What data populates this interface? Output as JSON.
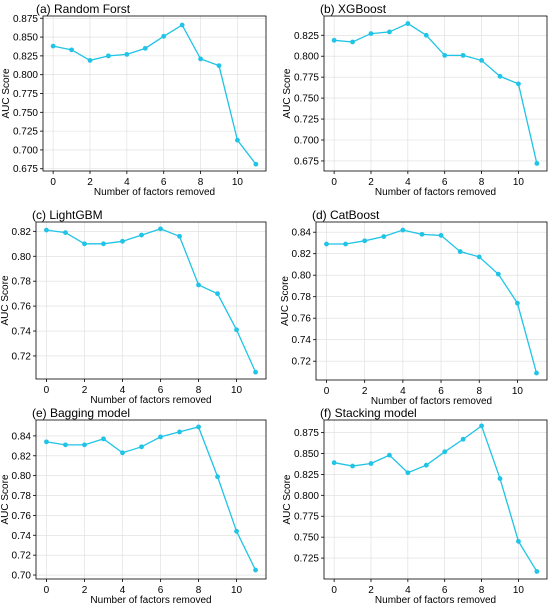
{
  "style": {
    "line_color": "#1fc4e6",
    "marker_color": "#1fc4e6",
    "grid_color": "#dcdcdc",
    "grid": true
  },
  "chart_data": [
    {
      "type": "line",
      "title": "(a) Random Forst",
      "xlabel": "Number of factors removed",
      "ylabel": "AUC Score",
      "x": [
        0,
        1,
        2,
        3,
        4,
        5,
        6,
        7,
        8,
        9,
        10,
        11
      ],
      "values": [
        0.838,
        0.833,
        0.819,
        0.825,
        0.827,
        0.835,
        0.851,
        0.866,
        0.821,
        0.812,
        0.713,
        0.681
      ],
      "xlim": [
        -0.55,
        11.55
      ],
      "ylim": [
        0.672,
        0.878
      ],
      "xticks": [
        0,
        2,
        4,
        6,
        8,
        10
      ],
      "yticks": [
        0.675,
        0.7,
        0.725,
        0.75,
        0.775,
        0.8,
        0.825,
        0.85,
        0.875
      ],
      "ytick_labels": [
        "0.675",
        "0.700",
        "0.725",
        "0.750",
        "0.775",
        "0.800",
        "0.825",
        "0.850",
        "0.875"
      ]
    },
    {
      "type": "line",
      "title": "(b) XGBoost",
      "xlabel": "Number of factors removed",
      "ylabel": "AUC Score",
      "x": [
        0,
        1,
        2,
        3,
        4,
        5,
        6,
        7,
        8,
        9,
        10,
        11
      ],
      "values": [
        0.819,
        0.817,
        0.827,
        0.829,
        0.839,
        0.825,
        0.801,
        0.801,
        0.795,
        0.776,
        0.767,
        0.672
      ],
      "xlim": [
        -0.55,
        11.55
      ],
      "ylim": [
        0.663,
        0.848
      ],
      "xticks": [
        0,
        2,
        4,
        6,
        8,
        10
      ],
      "yticks": [
        0.675,
        0.7,
        0.725,
        0.75,
        0.775,
        0.8,
        0.825
      ],
      "ytick_labels": [
        "0.675",
        "0.700",
        "0.725",
        "0.750",
        "0.775",
        "0.800",
        "0.825"
      ]
    },
    {
      "type": "line",
      "title": "(c) LightGBM",
      "xlabel": "Number of factors removed",
      "ylabel": "AUC Score",
      "x": [
        0,
        1,
        2,
        3,
        4,
        5,
        6,
        7,
        8,
        9,
        10,
        11
      ],
      "values": [
        0.821,
        0.819,
        0.81,
        0.81,
        0.812,
        0.817,
        0.822,
        0.816,
        0.777,
        0.77,
        0.741,
        0.707
      ],
      "xlim": [
        -0.55,
        11.55
      ],
      "ylim": [
        0.7015,
        0.8275
      ],
      "xticks": [
        0,
        2,
        4,
        6,
        8,
        10
      ],
      "yticks": [
        0.72,
        0.74,
        0.76,
        0.78,
        0.8,
        0.82
      ],
      "ytick_labels": [
        "0.72",
        "0.74",
        "0.76",
        "0.78",
        "0.80",
        "0.82"
      ]
    },
    {
      "type": "line",
      "title": "(d) CatBoost",
      "xlabel": "Number of factors removed",
      "ylabel": "AUC Score",
      "x": [
        0,
        1,
        2,
        3,
        4,
        5,
        6,
        7,
        8,
        9,
        10,
        11
      ],
      "values": [
        0.829,
        0.829,
        0.832,
        0.836,
        0.842,
        0.838,
        0.837,
        0.822,
        0.817,
        0.801,
        0.774,
        0.709
      ],
      "xlim": [
        -0.55,
        11.55
      ],
      "ylim": [
        0.7025,
        0.8495
      ],
      "xticks": [
        0,
        2,
        4,
        6,
        8,
        10
      ],
      "yticks": [
        0.72,
        0.74,
        0.76,
        0.78,
        0.8,
        0.82,
        0.84
      ],
      "ytick_labels": [
        "0.72",
        "0.74",
        "0.76",
        "0.78",
        "0.80",
        "0.82",
        "0.84"
      ]
    },
    {
      "type": "line",
      "title": "(e) Bagging model",
      "xlabel": "Number of factors removed",
      "ylabel": "AUC Score",
      "x": [
        0,
        1,
        2,
        3,
        4,
        5,
        6,
        7,
        8,
        9,
        10,
        11
      ],
      "values": [
        0.834,
        0.831,
        0.831,
        0.837,
        0.823,
        0.829,
        0.839,
        0.844,
        0.849,
        0.799,
        0.744,
        0.705
      ],
      "xlim": [
        -0.55,
        11.55
      ],
      "ylim": [
        0.696,
        0.856
      ],
      "xticks": [
        0,
        2,
        4,
        6,
        8,
        10
      ],
      "yticks": [
        0.7,
        0.72,
        0.74,
        0.76,
        0.78,
        0.8,
        0.82,
        0.84
      ],
      "ytick_labels": [
        "0.70",
        "0.72",
        "0.74",
        "0.76",
        "0.78",
        "0.80",
        "0.82",
        "0.84"
      ]
    },
    {
      "type": "line",
      "title": "(f) Stacking model",
      "xlabel": "Number of factors removed",
      "ylabel": "AUC Score",
      "x": [
        0,
        1,
        2,
        3,
        4,
        5,
        6,
        7,
        8,
        9,
        10,
        11
      ],
      "values": [
        0.839,
        0.835,
        0.838,
        0.848,
        0.827,
        0.836,
        0.852,
        0.867,
        0.883,
        0.82,
        0.745,
        0.709
      ],
      "xlim": [
        -0.55,
        11.55
      ],
      "ylim": [
        0.7,
        0.89
      ],
      "xticks": [
        0,
        2,
        4,
        6,
        8,
        10
      ],
      "yticks": [
        0.725,
        0.75,
        0.775,
        0.8,
        0.825,
        0.85,
        0.875
      ],
      "ytick_labels": [
        "0.725",
        "0.750",
        "0.775",
        "0.800",
        "0.825",
        "0.850",
        "0.875"
      ]
    }
  ]
}
